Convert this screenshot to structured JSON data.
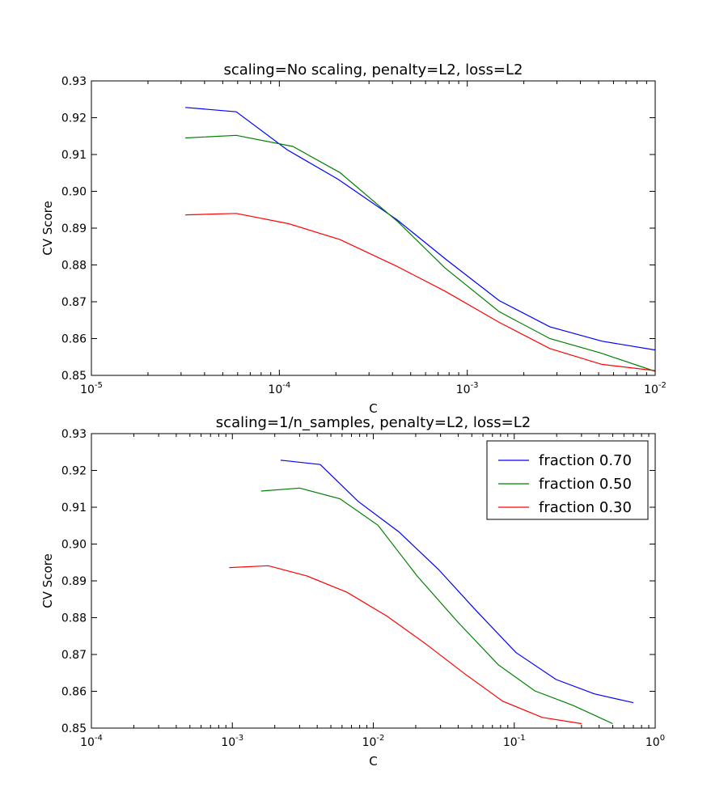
{
  "chart_data": [
    {
      "type": "line",
      "title": "scaling=No scaling, penalty=L2, loss=L2",
      "xlabel": "C",
      "ylabel": "CV Score",
      "xscale": "log",
      "xlim": [
        1e-05,
        0.01
      ],
      "ylim": [
        0.85,
        0.93
      ],
      "x_ticks": [
        {
          "base": "10",
          "exp": "-5"
        },
        {
          "base": "10",
          "exp": "-4"
        },
        {
          "base": "10",
          "exp": "-3"
        },
        {
          "base": "10",
          "exp": "-2"
        }
      ],
      "y_ticks": [
        "0.85",
        "0.86",
        "0.87",
        "0.88",
        "0.89",
        "0.90",
        "0.91",
        "0.92",
        "0.93"
      ],
      "grid": false,
      "legend": false,
      "series": [
        {
          "color": "#0000ff",
          "points": [
            [
              3.16e-05,
              0.9228
            ],
            [
              5.9e-05,
              0.9216
            ],
            [
              0.00011,
              0.9113
            ],
            [
              0.000205,
              0.9033
            ],
            [
              0.000422,
              0.8923
            ],
            [
              0.00078,
              0.8813
            ],
            [
              0.00148,
              0.8703
            ],
            [
              0.00275,
              0.8632
            ],
            [
              0.0052,
              0.8593
            ],
            [
              0.01,
              0.8569
            ]
          ]
        },
        {
          "color": "#008000",
          "points": [
            [
              3.16e-05,
              0.9145
            ],
            [
              5.9e-05,
              0.9152
            ],
            [
              0.000118,
              0.9122
            ],
            [
              0.00021,
              0.9051
            ],
            [
              0.00043,
              0.8916
            ],
            [
              0.00076,
              0.8792
            ],
            [
              0.00148,
              0.8673
            ],
            [
              0.00275,
              0.86
            ],
            [
              0.0051,
              0.8561
            ],
            [
              0.01,
              0.8511
            ]
          ]
        },
        {
          "color": "#ff0000",
          "points": [
            [
              3.16e-05,
              0.8936
            ],
            [
              5.9e-05,
              0.894
            ],
            [
              0.000112,
              0.8912
            ],
            [
              0.00021,
              0.8869
            ],
            [
              0.00042,
              0.8797
            ],
            [
              0.00076,
              0.8729
            ],
            [
              0.00148,
              0.8644
            ],
            [
              0.00275,
              0.8573
            ],
            [
              0.0052,
              0.853
            ],
            [
              0.01,
              0.8513
            ]
          ]
        }
      ]
    },
    {
      "type": "line",
      "title": "scaling=1/n_samples, penalty=L2, loss=L2",
      "xlabel": "C",
      "ylabel": "CV Score",
      "xscale": "log",
      "xlim": [
        0.0001,
        1
      ],
      "ylim": [
        0.85,
        0.93
      ],
      "x_ticks": [
        {
          "base": "10",
          "exp": "-4"
        },
        {
          "base": "10",
          "exp": "-3"
        },
        {
          "base": "10",
          "exp": "-2"
        },
        {
          "base": "10",
          "exp": "-1"
        },
        {
          "base": "10",
          "exp": "0"
        }
      ],
      "y_ticks": [
        "0.85",
        "0.86",
        "0.87",
        "0.88",
        "0.89",
        "0.90",
        "0.91",
        "0.92",
        "0.93"
      ],
      "grid": false,
      "legend": "top-right",
      "series": [
        {
          "name": "fraction 0.70",
          "color": "#0000ff",
          "points": [
            [
              0.0022,
              0.9228
            ],
            [
              0.0042,
              0.9216
            ],
            [
              0.0078,
              0.9116
            ],
            [
              0.0152,
              0.9033
            ],
            [
              0.029,
              0.8931
            ],
            [
              0.054,
              0.8818
            ],
            [
              0.103,
              0.8705
            ],
            [
              0.198,
              0.8632
            ],
            [
              0.37,
              0.8593
            ],
            [
              0.7,
              0.8569
            ]
          ]
        },
        {
          "name": "fraction 0.50",
          "color": "#008000",
          "points": [
            [
              0.0016,
              0.9144
            ],
            [
              0.003,
              0.9152
            ],
            [
              0.0058,
              0.9123
            ],
            [
              0.0108,
              0.9051
            ],
            [
              0.0205,
              0.8913
            ],
            [
              0.04,
              0.8787
            ],
            [
              0.077,
              0.8672
            ],
            [
              0.14,
              0.8601
            ],
            [
              0.26,
              0.8562
            ],
            [
              0.5,
              0.8512
            ]
          ]
        },
        {
          "name": "fraction 0.30",
          "color": "#ff0000",
          "points": [
            [
              0.00095,
              0.8936
            ],
            [
              0.0018,
              0.8941
            ],
            [
              0.0034,
              0.8913
            ],
            [
              0.0065,
              0.8869
            ],
            [
              0.0124,
              0.8805
            ],
            [
              0.0235,
              0.8729
            ],
            [
              0.044,
              0.8649
            ],
            [
              0.083,
              0.8573
            ],
            [
              0.158,
              0.8529
            ],
            [
              0.3,
              0.8512
            ]
          ]
        }
      ]
    }
  ]
}
